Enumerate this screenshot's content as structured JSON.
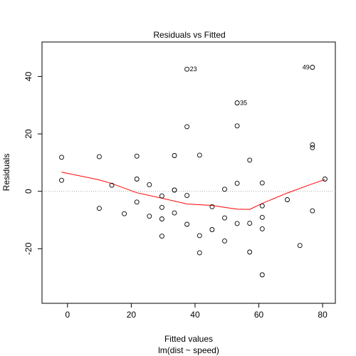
{
  "chart_data": {
    "type": "scatter",
    "title": "Residuals vs Fitted",
    "xlabel": "Fitted values",
    "subtitle": "lm(dist ~ speed)",
    "ylabel": "Residuals",
    "xlim": [
      -8.0,
      84.0
    ],
    "ylim": [
      -39.0,
      52.0
    ],
    "x_ticks": [
      0,
      20,
      40,
      60,
      80
    ],
    "y_ticks": [
      -20,
      0,
      20,
      40
    ],
    "x_tick_labels": [
      "0",
      "20",
      "40",
      "60",
      "80"
    ],
    "y_tick_labels": [
      "-20",
      "0",
      "20",
      "40"
    ],
    "grid": false,
    "reference_line_y": 0,
    "points": [
      {
        "x": -1.85,
        "y": 3.85
      },
      {
        "x": -1.85,
        "y": 11.85
      },
      {
        "x": 9.95,
        "y": -5.95
      },
      {
        "x": 9.95,
        "y": 12.05
      },
      {
        "x": 13.88,
        "y": 2.12
      },
      {
        "x": 17.81,
        "y": -7.81
      },
      {
        "x": 21.74,
        "y": -3.74
      },
      {
        "x": 21.74,
        "y": 4.26
      },
      {
        "x": 21.74,
        "y": 12.26
      },
      {
        "x": 25.68,
        "y": -8.68
      },
      {
        "x": 25.68,
        "y": 2.32
      },
      {
        "x": 29.61,
        "y": -15.61
      },
      {
        "x": 29.61,
        "y": -9.61
      },
      {
        "x": 29.61,
        "y": -5.61
      },
      {
        "x": 29.61,
        "y": -1.61
      },
      {
        "x": 33.54,
        "y": -7.54
      },
      {
        "x": 33.54,
        "y": 0.46
      },
      {
        "x": 33.54,
        "y": 0.46
      },
      {
        "x": 33.54,
        "y": 12.46
      },
      {
        "x": 37.47,
        "y": -11.47
      },
      {
        "x": 37.47,
        "y": -1.47
      },
      {
        "x": 37.47,
        "y": 22.53
      },
      {
        "x": 37.47,
        "y": 42.53,
        "label": "23"
      },
      {
        "x": 41.41,
        "y": -21.41
      },
      {
        "x": 41.41,
        "y": -15.41
      },
      {
        "x": 41.41,
        "y": 12.59
      },
      {
        "x": 45.34,
        "y": -13.34
      },
      {
        "x": 45.34,
        "y": -5.34
      },
      {
        "x": 49.27,
        "y": -17.27
      },
      {
        "x": 49.27,
        "y": -9.27
      },
      {
        "x": 49.27,
        "y": 0.73
      },
      {
        "x": 53.2,
        "y": -11.2
      },
      {
        "x": 53.2,
        "y": 2.8
      },
      {
        "x": 53.2,
        "y": 22.8
      },
      {
        "x": 53.2,
        "y": 30.8,
        "label": "35"
      },
      {
        "x": 57.14,
        "y": -21.14
      },
      {
        "x": 57.14,
        "y": -11.14
      },
      {
        "x": 57.14,
        "y": 10.86
      },
      {
        "x": 61.07,
        "y": -29.07
      },
      {
        "x": 61.07,
        "y": -13.07
      },
      {
        "x": 61.07,
        "y": -9.07
      },
      {
        "x": 61.07,
        "y": -5.07
      },
      {
        "x": 61.07,
        "y": 2.93
      },
      {
        "x": 68.93,
        "y": -2.93
      },
      {
        "x": 72.87,
        "y": -18.87
      },
      {
        "x": 76.8,
        "y": -6.8
      },
      {
        "x": 76.8,
        "y": 15.2
      },
      {
        "x": 76.8,
        "y": 16.2
      },
      {
        "x": 76.8,
        "y": 43.2,
        "label": "49"
      },
      {
        "x": 80.73,
        "y": 4.27
      }
    ],
    "smooth_line": {
      "color": "#ff0000",
      "points": [
        {
          "x": -1.85,
          "y": 6.7
        },
        {
          "x": 9.95,
          "y": 4.0
        },
        {
          "x": 13.88,
          "y": 2.7
        },
        {
          "x": 21.74,
          "y": -0.5
        },
        {
          "x": 29.61,
          "y": -2.4
        },
        {
          "x": 37.47,
          "y": -4.4
        },
        {
          "x": 45.34,
          "y": -4.9
        },
        {
          "x": 49.27,
          "y": -5.6
        },
        {
          "x": 53.2,
          "y": -6.2
        },
        {
          "x": 57.14,
          "y": -6.3
        },
        {
          "x": 61.07,
          "y": -4.2
        },
        {
          "x": 68.93,
          "y": -0.6
        },
        {
          "x": 76.8,
          "y": 2.6
        },
        {
          "x": 80.73,
          "y": 4.1
        }
      ]
    }
  }
}
